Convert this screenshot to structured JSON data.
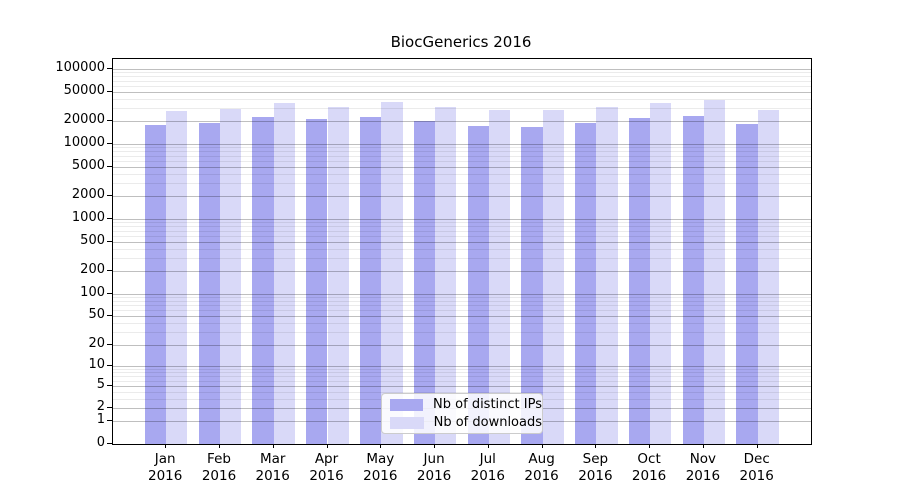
{
  "figure_title": "BiocGenerics 2016",
  "chart_data": {
    "type": "bar",
    "title": "BiocGenerics 2016",
    "xlabel": "",
    "ylabel": "",
    "y_scale": "log1p",
    "ylim": [
      0,
      135000
    ],
    "grid": "on",
    "legend_position": "lower-center",
    "categories": [
      {
        "month": "Jan",
        "year": "2016"
      },
      {
        "month": "Feb",
        "year": "2016"
      },
      {
        "month": "Mar",
        "year": "2016"
      },
      {
        "month": "Apr",
        "year": "2016"
      },
      {
        "month": "May",
        "year": "2016"
      },
      {
        "month": "Jun",
        "year": "2016"
      },
      {
        "month": "Jul",
        "year": "2016"
      },
      {
        "month": "Aug",
        "year": "2016"
      },
      {
        "month": "Sep",
        "year": "2016"
      },
      {
        "month": "Oct",
        "year": "2016"
      },
      {
        "month": "Nov",
        "year": "2016"
      },
      {
        "month": "Dec",
        "year": "2016"
      }
    ],
    "series": [
      {
        "name": "Nb of distinct IPs",
        "color": "#a8a8f0",
        "values": [
          17700,
          19200,
          22900,
          21300,
          22700,
          20300,
          17500,
          16900,
          19000,
          22400,
          23600,
          18300
        ]
      },
      {
        "name": "Nb of downloads",
        "color": "#d9d9f8",
        "values": [
          27600,
          29500,
          35500,
          31200,
          36700,
          31600,
          28100,
          28100,
          31600,
          35300,
          38700,
          28100
        ]
      }
    ],
    "y_ticks": [
      {
        "value": 100000,
        "label": "100000"
      },
      {
        "value": 50000,
        "label": "50000"
      },
      {
        "value": 20000,
        "label": "20000"
      },
      {
        "value": 10000,
        "label": "10000"
      },
      {
        "value": 5000,
        "label": "5000"
      },
      {
        "value": 2000,
        "label": "2000"
      },
      {
        "value": 1000,
        "label": "1000"
      },
      {
        "value": 500,
        "label": "500"
      },
      {
        "value": 200,
        "label": "200"
      },
      {
        "value": 100,
        "label": "100"
      },
      {
        "value": 50,
        "label": "50"
      },
      {
        "value": 20,
        "label": "20"
      },
      {
        "value": 10,
        "label": "10"
      },
      {
        "value": 5,
        "label": "5"
      },
      {
        "value": 2,
        "label": "2"
      },
      {
        "value": 1,
        "label": "1"
      },
      {
        "value": 0,
        "label": "0"
      }
    ]
  },
  "colors": {
    "bar_distinct_ips": "#a8a8f0",
    "bar_downloads": "#d9d9f8",
    "grid_major": "rgba(0,0,0,0.25)",
    "grid_minor": "rgba(0,0,0,0.08)",
    "axis": "#000000",
    "legend_border": "#cccccc"
  }
}
